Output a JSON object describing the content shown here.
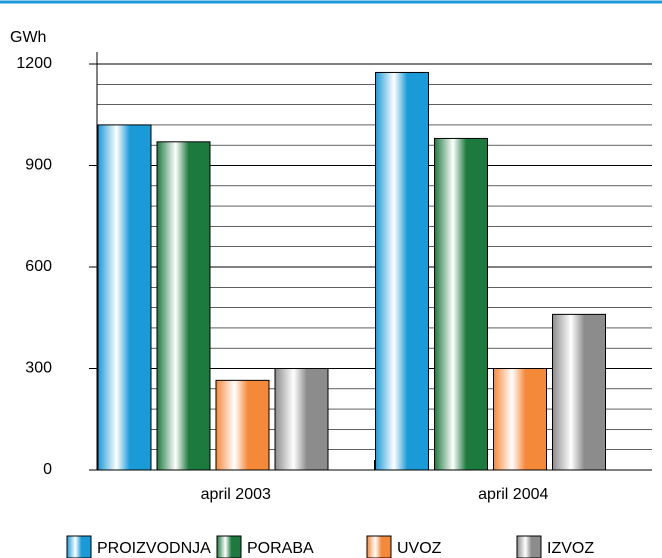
{
  "chart_data": {
    "type": "bar",
    "y_label": "GWh",
    "categories": [
      "april 2003",
      "april 2004"
    ],
    "series": [
      {
        "name": "PROIZVODNJA",
        "color": "#1b9ad8",
        "values": [
          1020,
          1175
        ]
      },
      {
        "name": "PORABA",
        "color": "#1d7a3f",
        "values": [
          970,
          980
        ]
      },
      {
        "name": "UVOZ",
        "color": "#f5893a",
        "values": [
          265,
          300
        ]
      },
      {
        "name": "IZVOZ",
        "color": "#8c8c8c",
        "values": [
          300,
          460
        ]
      }
    ],
    "ylim": [
      0,
      1200
    ],
    "yticks": [
      0,
      300,
      600,
      900,
      1200
    ],
    "minor_grid": [
      60,
      120,
      180,
      240,
      360,
      420,
      480,
      540,
      660,
      720,
      780,
      840,
      960,
      1020,
      1080,
      1140
    ],
    "grid": true,
    "legend": "bottom"
  }
}
